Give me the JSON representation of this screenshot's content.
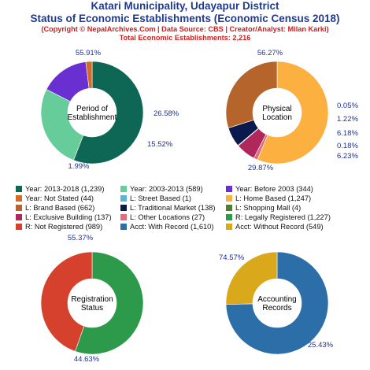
{
  "header": {
    "title1": "Katari Municipality, Udayapur District",
    "title2": "Status of Economic Establishments (Economic Census 2018)",
    "sub1": "(Copyright © NepalArchives.Com | Data Source: CBS | Creator/Analyst: Milan Karki)",
    "sub2": "Total Economic Establishments: 2,216"
  },
  "legend": [
    [
      {
        "label": "Year: 2013-2018 (1,239)",
        "color": "#0e6655"
      },
      {
        "label": "Year: 2003-2013 (589)",
        "color": "#66cc99"
      },
      {
        "label": "Year: Before 2003 (344)",
        "color": "#6a2fd1"
      }
    ],
    [
      {
        "label": "Year: Not Stated (44)",
        "color": "#d26a2a"
      },
      {
        "label": "L: Street Based (1)",
        "color": "#5ab4d8"
      },
      {
        "label": "L: Home Based (1,247)",
        "color": "#fbb040"
      }
    ],
    [
      {
        "label": "L: Brand Based (662)",
        "color": "#b5652b"
      },
      {
        "label": "L: Traditional Market (138)",
        "color": "#0b1a4d"
      },
      {
        "label": "L: Shopping Mall (4)",
        "color": "#4f7f2f"
      }
    ],
    [
      {
        "label": "L: Exclusive Building (137)",
        "color": "#b0285b"
      },
      {
        "label": "L: Other Locations (27)",
        "color": "#e06c7c"
      },
      {
        "label": "R: Legally Registered (1,227)",
        "color": "#2c9a4a"
      }
    ],
    [
      {
        "label": "R: Not Registered (989)",
        "color": "#d6412e"
      },
      {
        "label": "Acct: With Record (1,610)",
        "color": "#2c6fa8"
      },
      {
        "label": "Acct: Without Record (549)",
        "color": "#d9a91b"
      }
    ]
  ],
  "chart_data": [
    {
      "type": "pie",
      "center_label": [
        "Period of",
        "Establishment"
      ],
      "categories": [
        "Year: 2013-2018",
        "Year: 2003-2013",
        "Year: Before 2003",
        "Year: Not Stated"
      ],
      "values": [
        1239,
        589,
        344,
        44
      ],
      "percent_labels": [
        "55.91%",
        "26.58%",
        "15.52%",
        "1.99%"
      ],
      "colors": [
        "#0e6655",
        "#66cc99",
        "#6a2fd1",
        "#d26a2a"
      ]
    },
    {
      "type": "pie",
      "center_label": [
        "Physical",
        "Location"
      ],
      "categories": [
        "L: Home Based",
        "L: Street Based",
        "L: Other Locations",
        "L: Exclusive Building",
        "L: Shopping Mall",
        "L: Traditional Market",
        "L: Brand Based"
      ],
      "values": [
        1247,
        1,
        27,
        137,
        4,
        138,
        662
      ],
      "percent_labels": [
        "56.27%",
        "0.05%",
        "1.22%",
        "6.18%",
        "0.18%",
        "6.23%",
        "29.87%"
      ],
      "colors": [
        "#fbb040",
        "#5ab4d8",
        "#e06c7c",
        "#b0285b",
        "#4f7f2f",
        "#0b1a4d",
        "#b5652b"
      ]
    },
    {
      "type": "pie",
      "center_label": [
        "Registration",
        "Status"
      ],
      "categories": [
        "R: Legally Registered",
        "R: Not Registered"
      ],
      "values": [
        1227,
        989
      ],
      "percent_labels": [
        "55.37%",
        "44.63%"
      ],
      "colors": [
        "#2c9a4a",
        "#d6412e"
      ]
    },
    {
      "type": "pie",
      "center_label": [
        "Accounting",
        "Records"
      ],
      "categories": [
        "Acct: With Record",
        "Acct: Without Record"
      ],
      "values": [
        1610,
        549
      ],
      "percent_labels": [
        "74.57%",
        "25.43%"
      ],
      "colors": [
        "#2c6fa8",
        "#d9a91b"
      ]
    }
  ]
}
